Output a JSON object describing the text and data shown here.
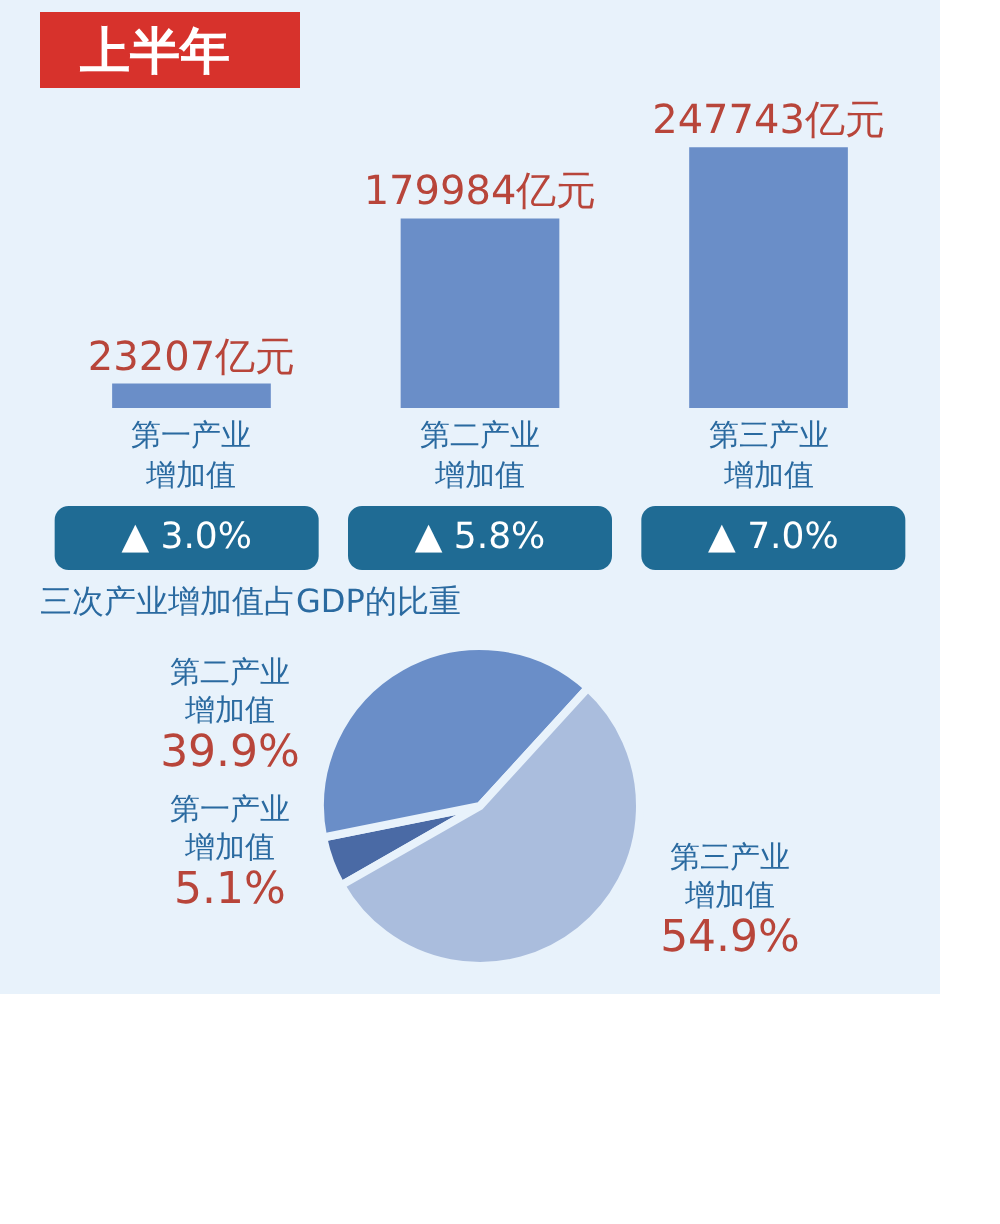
{
  "chart_data": [
    {
      "type": "bar",
      "title": "上半年",
      "categories": [
        "第一产业增加值",
        "第二产业增加值",
        "第三产业增加值"
      ],
      "values": [
        23207,
        179984,
        247743
      ],
      "color": "#6a8ec8",
      "value_labels": [
        "23207亿元",
        "179984亿元",
        "247743亿元"
      ],
      "annotations": [
        "▲ 3.0%",
        "▲ 5.8%",
        "▲ 7.0%"
      ]
    },
    {
      "type": "pie",
      "title": "三次产业增加值占GDP的比重",
      "categories": [
        "第一产业增加值",
        "第二产业增加值",
        "第三产业增加值"
      ],
      "values": [
        5.1,
        39.9,
        54.9
      ],
      "colors": [
        "#4a6aa5",
        "#6a8ec8",
        "#aabddd"
      ],
      "value_labels": [
        "5.1%",
        "39.9%",
        "54.9%"
      ]
    }
  ]
}
